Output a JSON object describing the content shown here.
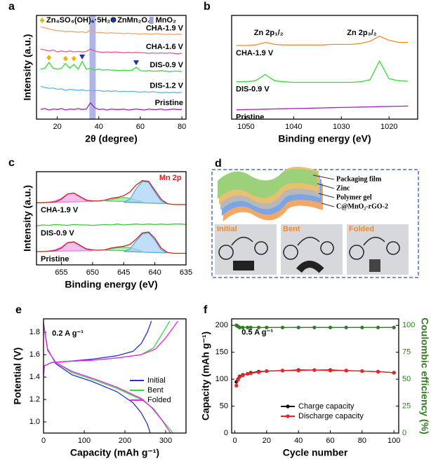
{
  "chart_data": [
    {
      "type": "line",
      "label": "a",
      "xlabel": "2θ (degree)",
      "ylabel": "Intensity (a.u.)",
      "legend": "inline-right",
      "xlim": [
        10,
        82
      ],
      "xticks": [
        20,
        40,
        60,
        80
      ],
      "ylim": [
        0,
        10.8
      ],
      "x": [
        12,
        14,
        16,
        18,
        20,
        22,
        24,
        26,
        28,
        30,
        32,
        34,
        36,
        38,
        40,
        42,
        44,
        46,
        48,
        50,
        52,
        54,
        56,
        58,
        60,
        62,
        64,
        66,
        68,
        70,
        72,
        74,
        76,
        78,
        80
      ],
      "markers": [
        {
          "name": "Zn₄SO₄(OH)₆·5H₂O",
          "color": "#f0b400",
          "marker": "diamond",
          "x": [
            16,
            24,
            28
          ],
          "y": [
            6.4,
            6.3,
            6.3
          ]
        },
        {
          "name": "ZnMn₂O₄",
          "color": "#1a2fb0",
          "marker": "triangle",
          "x": [
            32,
            58
          ],
          "y": [
            6.5,
            5.9
          ]
        },
        {
          "name": "MnO₂",
          "color": "#9aa4e0",
          "band": [
            35.5,
            38.5
          ]
        }
      ],
      "series": [
        {
          "name": "CHA-1.9 V",
          "color": "#f2a46a",
          "values": [
            9.6,
            9.5,
            9.4,
            9.3,
            9.2,
            9.2,
            9.1,
            9.15,
            9.1,
            9.05,
            9.1,
            9.0,
            9.3,
            9.05,
            9.0,
            9.0,
            8.95,
            9.0,
            8.95,
            8.95,
            8.9,
            8.95,
            8.9,
            8.9,
            8.85,
            8.9,
            8.85,
            8.85,
            8.9,
            8.85,
            8.8,
            8.85,
            8.8,
            8.85,
            8.8
          ]
        },
        {
          "name": "CHA-1.6 V",
          "color": "#f0509a",
          "values": [
            7.3,
            7.2,
            7.1,
            7.2,
            7.0,
            7.1,
            7.0,
            7.1,
            7.0,
            7.05,
            7.0,
            7.05,
            7.3,
            7.1,
            7.0,
            6.95,
            7.0,
            6.95,
            7.0,
            6.95,
            6.9,
            6.95,
            6.9,
            6.95,
            6.9,
            6.9,
            6.85,
            6.9,
            6.85,
            6.9,
            6.85,
            6.9,
            6.85,
            6.8,
            6.85
          ]
        },
        {
          "name": "DIS-0.9 V",
          "color": "#33dd33",
          "values": [
            5.2,
            5.3,
            5.9,
            5.3,
            5.2,
            5.3,
            5.8,
            5.3,
            5.7,
            5.2,
            6.0,
            5.2,
            5.3,
            5.1,
            5.2,
            5.1,
            5.15,
            5.1,
            5.1,
            5.05,
            5.1,
            5.05,
            5.1,
            5.4,
            5.05,
            5.0,
            5.05,
            5.0,
            5.0,
            5.05,
            5.0,
            4.95,
            5.0,
            5.0,
            4.95
          ]
        },
        {
          "name": "DIS-1.2 V",
          "color": "#55b8f0",
          "values": [
            3.4,
            3.3,
            3.2,
            3.25,
            3.1,
            3.15,
            3.0,
            3.1,
            3.05,
            3.0,
            3.05,
            2.95,
            3.0,
            2.95,
            3.0,
            2.9,
            2.95,
            2.9,
            2.95,
            2.85,
            2.9,
            2.85,
            2.9,
            2.85,
            2.8,
            2.85,
            2.8,
            2.85,
            2.8,
            2.75,
            2.8,
            2.75,
            2.8,
            2.75,
            2.8
          ]
        },
        {
          "name": "Pristine",
          "color": "#a020c0",
          "values": [
            1.0,
            1.1,
            0.95,
            1.05,
            1.0,
            1.1,
            0.95,
            1.05,
            1.0,
            1.1,
            1.0,
            1.05,
            1.7,
            1.2,
            1.0,
            1.05,
            0.95,
            1.05,
            1.0,
            1.0,
            1.05,
            0.95,
            1.0,
            1.05,
            1.0,
            0.95,
            1.05,
            1.0,
            1.0,
            1.05,
            0.95,
            1.0,
            1.05,
            1.0,
            1.0
          ]
        }
      ]
    },
    {
      "type": "line",
      "label": "b",
      "xlabel": "Binding energy (eV)",
      "legend": "inline-left",
      "xlim": [
        1053,
        1014
      ],
      "xticks": [
        1050,
        1040,
        1030,
        1020
      ],
      "ylim": [
        0,
        10
      ],
      "x": [
        1052,
        1050,
        1048,
        1046,
        1044,
        1042,
        1040,
        1038,
        1036,
        1034,
        1032,
        1030,
        1028,
        1026,
        1024,
        1022,
        1020,
        1018,
        1016
      ],
      "annotations": [
        {
          "text": "Zn 2p₁/₂"
        },
        {
          "text": "Zn 2p₃/₂"
        }
      ],
      "series": [
        {
          "name": "CHA-1.9 V",
          "color": "#f28a30",
          "values": [
            7.1,
            7.1,
            7.15,
            7.4,
            7.2,
            7.15,
            7.15,
            7.15,
            7.15,
            7.15,
            7.2,
            7.2,
            7.2,
            7.3,
            7.5,
            8.0,
            7.6,
            7.4,
            7.4
          ]
        },
        {
          "name": "DIS-0.9 V",
          "color": "#33dd33",
          "values": [
            3.6,
            3.6,
            3.7,
            4.3,
            3.7,
            3.6,
            3.55,
            3.55,
            3.55,
            3.55,
            3.55,
            3.55,
            3.55,
            3.6,
            3.8,
            5.6,
            3.9,
            3.7,
            3.65
          ]
        },
        {
          "name": "Pristine",
          "color": "#a020c0",
          "values": [
            0.9,
            0.92,
            0.94,
            0.96,
            0.98,
            1.0,
            1.02,
            1.04,
            1.06,
            1.08,
            1.1,
            1.12,
            1.14,
            1.16,
            1.18,
            1.2,
            1.22,
            1.24,
            1.26
          ]
        }
      ]
    },
    {
      "type": "line",
      "label": "c",
      "xlabel": "Binding energy (eV)",
      "ylabel": "Intensity (a.u.)",
      "legend": "inline-left",
      "xlim": [
        659,
        635
      ],
      "xticks": [
        655,
        650,
        645,
        640,
        635
      ],
      "ylim": [
        0,
        10.5
      ],
      "x": [
        659,
        658,
        657,
        656,
        655,
        654,
        653,
        652,
        651,
        650,
        649,
        648,
        647,
        646,
        645,
        644,
        643,
        642,
        641,
        640,
        639,
        638,
        637,
        636,
        635
      ],
      "annotations": [
        {
          "text": "Mn 2p",
          "color": "#e02020"
        }
      ],
      "series": [
        {
          "color": "#e87ad8",
          "fill": "#f0a8e8",
          "x": [
            657,
            656,
            655,
            654,
            653,
            652,
            651,
            650
          ],
          "values": [
            7.05,
            7.2,
            7.5,
            8.0,
            8.05,
            7.6,
            7.25,
            7.15
          ]
        },
        {
          "color": "#60d060",
          "fill": "#9be89b",
          "x": [
            648,
            647,
            646,
            645,
            644,
            643,
            642
          ],
          "values": [
            7.2,
            7.35,
            7.5,
            7.6,
            7.5,
            7.3,
            7.1
          ]
        },
        {
          "color": "#5aa8e0",
          "fill": "#a8d4f4",
          "x": [
            645,
            644,
            643,
            642,
            641,
            640,
            639,
            638
          ],
          "values": [
            7.05,
            7.4,
            8.6,
            9.4,
            9.3,
            8.2,
            7.2,
            6.9
          ]
        },
        {
          "color": "#e87ad8",
          "fill": "#f0a8e8",
          "x": [
            657,
            656,
            655,
            654,
            653,
            652,
            651,
            650
          ],
          "values": [
            1.55,
            1.7,
            2.0,
            2.5,
            2.55,
            2.1,
            1.75,
            1.6
          ]
        },
        {
          "color": "#60d060",
          "fill": "#9be89b",
          "x": [
            648,
            647,
            646,
            645,
            644,
            643,
            642
          ],
          "values": [
            1.65,
            1.8,
            1.95,
            2.0,
            1.95,
            1.75,
            1.55
          ]
        },
        {
          "color": "#5aa8e0",
          "fill": "#a8d4f4",
          "x": [
            645,
            644,
            643,
            642,
            641,
            640,
            639,
            638
          ],
          "values": [
            1.5,
            1.8,
            2.7,
            3.5,
            3.6,
            2.8,
            1.7,
            1.35
          ]
        },
        {
          "name": "CHA-1.9 V",
          "color": "#cc2222",
          "values": [
            7.0,
            7.0,
            7.05,
            7.1,
            7.4,
            8.0,
            8.1,
            7.7,
            7.3,
            7.2,
            7.2,
            7.3,
            7.5,
            7.6,
            7.8,
            8.2,
            9.0,
            9.5,
            9.4,
            8.4,
            7.4,
            6.9,
            6.8,
            6.8,
            6.8
          ]
        },
        {
          "name": "DIS-0.9 V",
          "color": "#33cc33",
          "values": [
            4.4,
            4.5,
            4.45,
            4.55,
            4.5,
            4.45,
            4.55,
            4.5,
            4.5,
            4.45,
            4.5,
            4.55,
            4.5,
            4.6,
            4.5,
            4.55,
            4.6,
            4.55,
            4.6,
            4.55,
            4.6,
            4.55,
            4.6,
            4.6,
            4.55
          ]
        },
        {
          "name": "Pristine",
          "color": "#cc2222",
          "values": [
            1.5,
            1.5,
            1.55,
            1.6,
            1.9,
            2.5,
            2.6,
            2.2,
            1.8,
            1.7,
            1.65,
            1.7,
            1.9,
            2.0,
            2.1,
            2.3,
            2.9,
            3.6,
            3.7,
            3.0,
            1.9,
            1.4,
            1.3,
            1.3,
            1.3
          ]
        }
      ]
    },
    {
      "type": "line",
      "label": "e",
      "xlabel": "Capacity (mAh g⁻¹)",
      "ylabel": "Potential (V)",
      "legend": "right",
      "xlim": [
        0,
        350
      ],
      "xticks": [
        0,
        100,
        200,
        300
      ],
      "ylim": [
        0.9,
        1.92
      ],
      "yticks": [
        {
          "value": 1,
          "label": "1.0"
        },
        1.2,
        1.4,
        1.6,
        1.8
      ],
      "annotations": [
        {
          "text": "0.2 A g⁻¹"
        }
      ],
      "series": [
        {
          "name": "Initial",
          "color": "#2233dd",
          "x": [
            0,
            2,
            20,
            60,
            120,
            180,
            220,
            240,
            255,
            265,
            null,
            0,
            10,
            30,
            70,
            120,
            180,
            220,
            240,
            255,
            262
          ],
          "values": [
            1.42,
            1.5,
            1.53,
            1.54,
            1.56,
            1.59,
            1.63,
            1.7,
            1.8,
            1.9,
            null,
            1.88,
            1.65,
            1.52,
            1.42,
            1.36,
            1.27,
            1.17,
            1.08,
            0.98,
            0.9
          ]
        },
        {
          "name": "Bent",
          "color": "#33dd33",
          "x": [
            0,
            2,
            20,
            60,
            120,
            180,
            240,
            270,
            290,
            310,
            null,
            0,
            10,
            30,
            70,
            120,
            180,
            240,
            270,
            295,
            318
          ],
          "values": [
            1.42,
            1.5,
            1.53,
            1.54,
            1.55,
            1.57,
            1.6,
            1.66,
            1.78,
            1.9,
            null,
            1.88,
            1.64,
            1.53,
            1.44,
            1.38,
            1.3,
            1.2,
            1.12,
            1.0,
            0.9
          ]
        },
        {
          "name": "Folded",
          "color": "#ee22ee",
          "x": [
            0,
            2,
            20,
            60,
            120,
            180,
            240,
            275,
            300,
            330,
            null,
            0,
            10,
            30,
            70,
            120,
            180,
            240,
            265,
            290,
            312
          ],
          "values": [
            1.42,
            1.5,
            1.53,
            1.54,
            1.55,
            1.57,
            1.6,
            1.65,
            1.75,
            1.9,
            null,
            1.88,
            1.64,
            1.53,
            1.45,
            1.39,
            1.31,
            1.21,
            1.13,
            1.02,
            0.9
          ]
        }
      ]
    },
    {
      "type": "line",
      "label": "f",
      "xlabel": "Cycle number",
      "ylabel": "Capacity (mAh g⁻¹)",
      "y2label": "Coulombic efficiency (%)",
      "y2color": "#2e7d1e",
      "legend": "bottom",
      "xlim": [
        -2,
        103
      ],
      "xticks": [
        0,
        20,
        40,
        60,
        80,
        100
      ],
      "ylim": [
        0,
        212
      ],
      "yticks": [
        0,
        50,
        100,
        150,
        200
      ],
      "y2lim": [
        0,
        106
      ],
      "y2ticks": [
        0,
        25,
        50,
        75,
        100
      ],
      "annotations": [
        {
          "text": "0.5 A g⁻¹"
        }
      ],
      "x": [
        1,
        2,
        3,
        5,
        8,
        10,
        15,
        20,
        30,
        40,
        50,
        60,
        70,
        80,
        90,
        100
      ],
      "series": [
        {
          "color": "#2e7d1e",
          "axis": "y2",
          "marker": "circle",
          "values": [
            100,
            99,
            98,
            98,
            98,
            98,
            98,
            98,
            98,
            98,
            98,
            98,
            98,
            98,
            98,
            98
          ]
        },
        {
          "name": "Charge capacity",
          "color": "#111111",
          "marker": "circle",
          "values": [
            95,
            100,
            105,
            108,
            110,
            112,
            114,
            115,
            116,
            117,
            117,
            117,
            116,
            115,
            114,
            112
          ]
        },
        {
          "name": "Discharge capacity",
          "color": "#ee2222",
          "marker": "circle",
          "values": [
            88,
            99,
            104,
            107,
            110,
            111,
            113,
            115,
            116,
            116,
            117,
            116,
            116,
            115,
            114,
            112
          ]
        }
      ]
    }
  ],
  "schematic": {
    "label": "d",
    "layers": [
      "Packaging film",
      "Zinc",
      "Polymer gel",
      "C@MnO₂-rGO-2"
    ],
    "photos": [
      "Initial",
      "Bent",
      "Folded"
    ]
  }
}
